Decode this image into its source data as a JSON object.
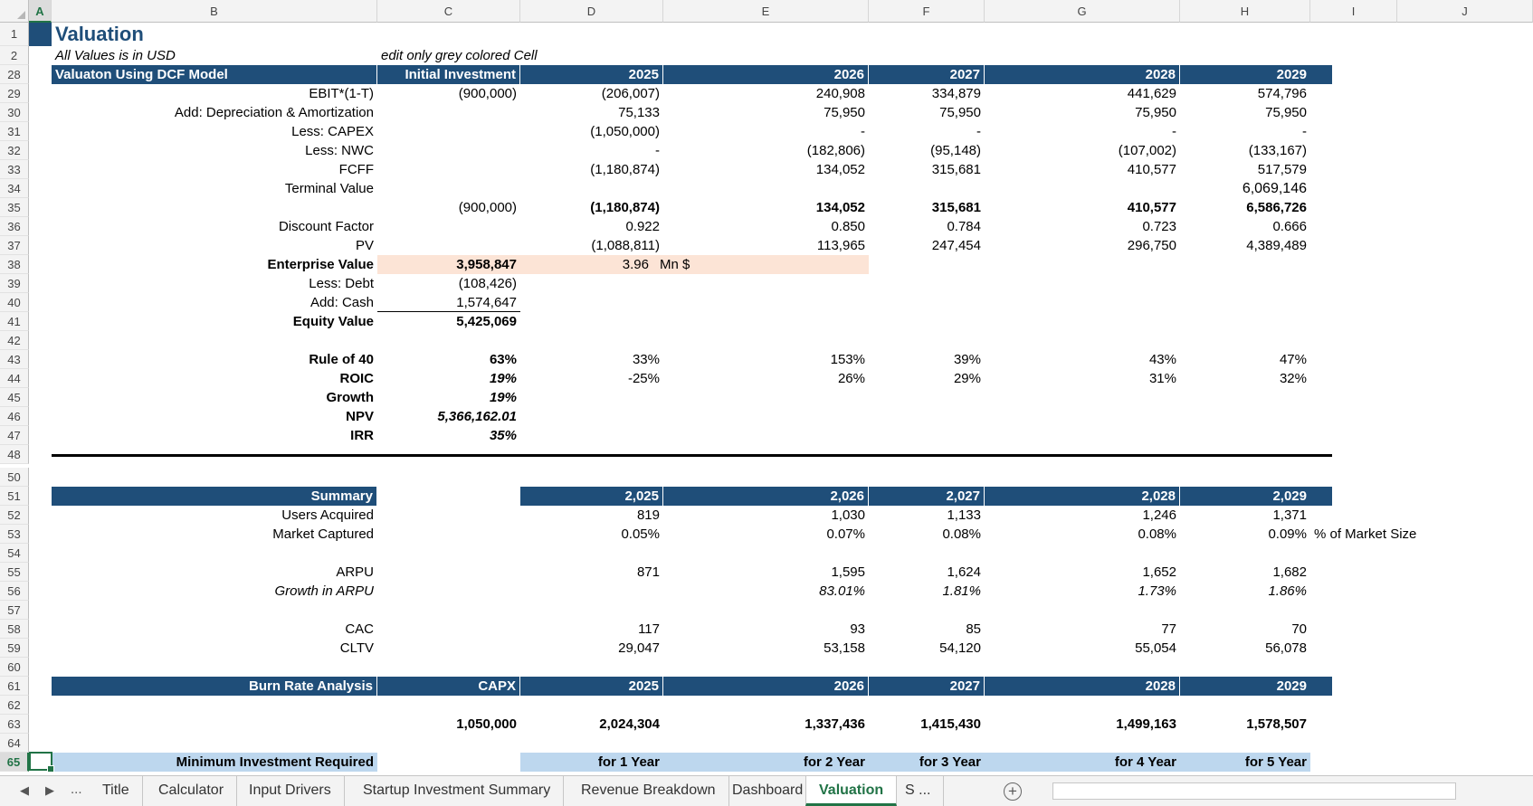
{
  "columns": [
    {
      "name": "A",
      "selected": true
    },
    {
      "name": "B"
    },
    {
      "name": "C"
    },
    {
      "name": "D"
    },
    {
      "name": "E"
    },
    {
      "name": "F"
    },
    {
      "name": "G"
    },
    {
      "name": "H"
    },
    {
      "name": "I"
    },
    {
      "name": "J"
    }
  ],
  "rows": {
    "r1": "1",
    "r2": "2",
    "r28": "28",
    "r29": "29",
    "r30": "30",
    "r31": "31",
    "r32": "32",
    "r33": "33",
    "r34": "34",
    "r35": "35",
    "r36": "36",
    "r37": "37",
    "r38": "38",
    "r39": "39",
    "r40": "40",
    "r41": "41",
    "r42": "42",
    "r43": "43",
    "r44": "44",
    "r45": "45",
    "r46": "46",
    "r47": "47",
    "r48": "48",
    "r50": "50",
    "r51": "51",
    "r52": "52",
    "r53": "53",
    "r54": "54",
    "r55": "55",
    "r56": "56",
    "r57": "57",
    "r58": "58",
    "r59": "59",
    "r60": "60",
    "r61": "61",
    "r62": "62",
    "r63": "63",
    "r64": "64",
    "r65": "65"
  },
  "title": "Valuation",
  "subtitle": "All Values is in USD",
  "edit_note": "edit only grey colored Cell",
  "dcf": {
    "header": {
      "label": "Valuaton Using DCF Model",
      "c": "Initial Investment",
      "d": "2025",
      "e": "2026",
      "f": "2027",
      "g": "2028",
      "h": "2029"
    },
    "ebit": {
      "label": "EBIT*(1-T)",
      "c": "(900,000)",
      "d": "(206,007)",
      "e": "240,908",
      "f": "334,879",
      "g": "441,629",
      "h": "574,796"
    },
    "da": {
      "label": "Add: Depreciation & Amortization",
      "d": "75,133",
      "e": "75,950",
      "f": "75,950",
      "g": "75,950",
      "h": "75,950"
    },
    "capex": {
      "label": "Less: CAPEX",
      "d": "(1,050,000)",
      "e": "-",
      "f": "-",
      "g": "-",
      "h": "-"
    },
    "nwc": {
      "label": "Less: NWC",
      "d": "-",
      "e": "(182,806)",
      "f": "(95,148)",
      "g": "(107,002)",
      "h": "(133,167)"
    },
    "fcff": {
      "label": "FCFF",
      "d": "(1,180,874)",
      "e": "134,052",
      "f": "315,681",
      "g": "410,577",
      "h": "517,579"
    },
    "tv": {
      "label": "Terminal Value",
      "h": "6,069,146"
    },
    "total": {
      "c": "(900,000)",
      "d": "(1,180,874)",
      "e": "134,052",
      "f": "315,681",
      "g": "410,577",
      "h": "6,586,726"
    },
    "df": {
      "label": "Discount Factor",
      "d": "0.922",
      "e": "0.850",
      "f": "0.784",
      "g": "0.723",
      "h": "0.666"
    },
    "pv": {
      "label": "PV",
      "d": "(1,088,811)",
      "e": "113,965",
      "f": "247,454",
      "g": "296,750",
      "h": "4,389,489"
    },
    "ev": {
      "label": "Enterprise Value",
      "c": "3,958,847",
      "d": "3.96",
      "unit": "Mn $"
    },
    "debt": {
      "label": "Less: Debt",
      "c": "(108,426)"
    },
    "cash": {
      "label": "Add: Cash",
      "c": "1,574,647"
    },
    "equity": {
      "label": "Equity Value",
      "c": "5,425,069"
    }
  },
  "metrics": {
    "rule40": {
      "label": "Rule of 40",
      "c": "63%",
      "d": "33%",
      "e": "153%",
      "f": "39%",
      "g": "43%",
      "h": "47%"
    },
    "roic": {
      "label": "ROIC",
      "c": "19%",
      "d": "-25%",
      "e": "26%",
      "f": "29%",
      "g": "31%",
      "h": "32%"
    },
    "growth": {
      "label": "Growth",
      "c": "19%"
    },
    "npv": {
      "label": "NPV",
      "c": "5,366,162.01"
    },
    "irr": {
      "label": "IRR",
      "c": "35%"
    }
  },
  "summary": {
    "header": {
      "label": "Summary",
      "d": "2,025",
      "e": "2,026",
      "f": "2,027",
      "g": "2,028",
      "h": "2,029"
    },
    "users": {
      "label": "Users Acquired",
      "d": "819",
      "e": "1,030",
      "f": "1,133",
      "g": "1,246",
      "h": "1,371"
    },
    "market": {
      "label": "Market Captured",
      "d": "0.05%",
      "e": "0.07%",
      "f": "0.08%",
      "g": "0.08%",
      "h": "0.09%",
      "note": "% of Market Size"
    },
    "arpu": {
      "label": "ARPU",
      "d": "871",
      "e": "1,595",
      "f": "1,624",
      "g": "1,652",
      "h": "1,682"
    },
    "arpu_growth": {
      "label": "Growth in ARPU",
      "e": "83.01%",
      "f": "1.81%",
      "g": "1.73%",
      "h": "1.86%"
    },
    "cac": {
      "label": "CAC",
      "d": "117",
      "e": "93",
      "f": "85",
      "g": "77",
      "h": "70"
    },
    "cltv": {
      "label": "CLTV",
      "d": "29,047",
      "e": "53,158",
      "f": "54,120",
      "g": "55,054",
      "h": "56,078"
    }
  },
  "burn": {
    "header": {
      "label": "Burn Rate Analysis",
      "c": "CAPX",
      "d": "2025",
      "e": "2026",
      "f": "2027",
      "g": "2028",
      "h": "2029"
    },
    "values": {
      "c": "1,050,000",
      "d": "2,024,304",
      "e": "1,337,436",
      "f": "1,415,430",
      "g": "1,499,163",
      "h": "1,578,507"
    },
    "min_inv": {
      "label": "Minimum Investment Required",
      "d": "for 1 Year",
      "e": "for 2 Year",
      "f": "for 3 Year",
      "g": "for 4 Year",
      "h": "for 5 Year"
    }
  },
  "colors": {
    "header_blue": "#1f4e79",
    "light_blue": "#bdd7ee",
    "peach": "#fce4d6",
    "excel_green": "#217346"
  },
  "tabs": {
    "nav_prev": "◀",
    "nav_next": "▶",
    "more": "...",
    "items": [
      "Title",
      "Calculator",
      "Input Drivers",
      "Startup Investment Summary",
      "Revenue Breakdown",
      "Dashboard",
      "Valuation",
      "S ..."
    ],
    "active": "Valuation",
    "add": "+"
  }
}
